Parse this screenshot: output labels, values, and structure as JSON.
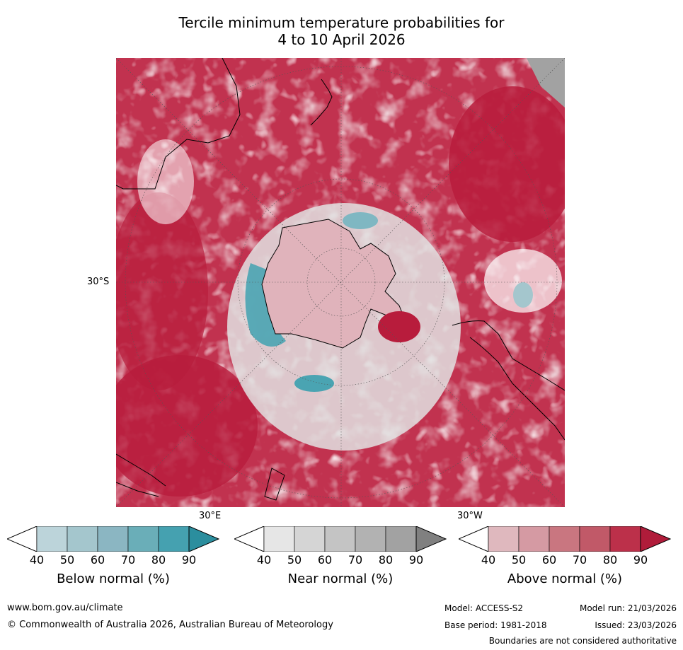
{
  "header": {
    "title_line1": "Tercile minimum temperature probabilities for",
    "title_line2": "4 to 10 April 2026"
  },
  "map": {
    "lat_label": "30°S",
    "lon_label_east": "30°E",
    "lon_label_west": "30°W",
    "colors": {
      "above_dominant": "#bc2343",
      "above_light": "#dfb6be",
      "near": "#e0e0e0",
      "below": "#4aa4b2",
      "land_outline": "#000000"
    }
  },
  "colorbars": [
    {
      "label": "Below normal (%)",
      "ticks": [
        "40",
        "50",
        "60",
        "70",
        "80",
        "90"
      ],
      "colors": [
        "#ffffff",
        "#bcd4da",
        "#a4c6cd",
        "#8bb6c2",
        "#6aaeb8",
        "#45a1b0",
        "#2b8e9e"
      ]
    },
    {
      "label": "Near normal (%)",
      "ticks": [
        "40",
        "50",
        "60",
        "70",
        "80",
        "90"
      ],
      "colors": [
        "#ffffff",
        "#e6e6e6",
        "#d5d5d5",
        "#c4c4c4",
        "#b2b2b2",
        "#a2a2a2",
        "#808080"
      ]
    },
    {
      "label": "Above normal (%)",
      "ticks": [
        "40",
        "50",
        "60",
        "70",
        "80",
        "90"
      ],
      "colors": [
        "#ffffff",
        "#dfb8be",
        "#d59aa3",
        "#c97680",
        "#c15968",
        "#bc304a",
        "#b01c3a"
      ]
    }
  ],
  "footer": {
    "website": "www.bom.gov.au/climate",
    "copyright": "© Commonwealth of Australia 2026, Australian Bureau of Meteorology",
    "model": "Model: ACCESS-S2",
    "base_period": "Base period: 1981-2018",
    "model_run": "Model run: 21/03/2026",
    "issued": "Issued: 23/03/2026",
    "disclaimer": "Boundaries are not considered authoritative"
  }
}
